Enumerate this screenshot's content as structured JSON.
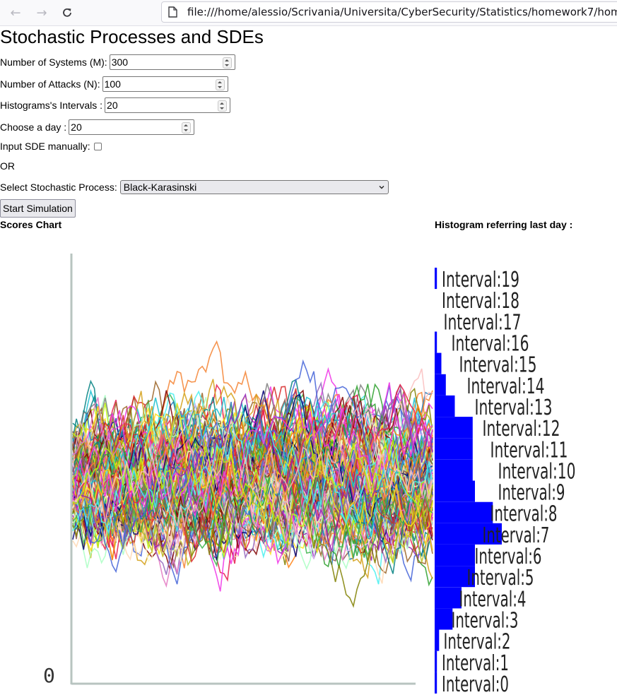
{
  "browser": {
    "url": "file:///home/alessio/Scrivania/Universita/CyberSecurity/Statistics/homework7/homewo"
  },
  "page": {
    "title": "Stochastic Processes and SDEs"
  },
  "form": {
    "systems": {
      "label": "Number of Systems (M):",
      "value": "300"
    },
    "attacks": {
      "label": "Number of Attacks (N):",
      "value": "100"
    },
    "intervals": {
      "label": "Histograms's Intervals :",
      "value": "20"
    },
    "day": {
      "label": "Choose a day :",
      "value": "20"
    },
    "sde_manual": {
      "label": "Input SDE manually:",
      "checked": false
    },
    "or_text": "OR",
    "process": {
      "label": "Select Stochastic Process:",
      "value": "Black-Karasinski"
    },
    "start_button": "Start Simulation"
  },
  "charts": {
    "scores_title": "Scores Chart",
    "histogram_title": "Histogram referring last day :",
    "y_tick_zero": "0"
  },
  "chart_data": [
    {
      "type": "line",
      "title": "Scores Chart",
      "description_series_count": 300,
      "x": {
        "min": 0,
        "max": 100
      },
      "ylim_visible_tick": "0",
      "grid": false,
      "legend": "none"
    },
    {
      "type": "bar",
      "title": "Histogram referring last day :",
      "orientation": "horizontal",
      "categories": [
        "Interval:0",
        "Interval:1",
        "Interval:2",
        "Interval:3",
        "Interval:4",
        "Interval:5",
        "Interval:6",
        "Interval:7",
        "Interval:8",
        "Interval:9",
        "Interval:10",
        "Interval:11",
        "Interval:12",
        "Interval:13",
        "Interval:14",
        "Interval:15",
        "Interval:16",
        "Interval:17",
        "Interval:18",
        "Interval:19"
      ],
      "values": [
        1,
        1,
        2,
        8,
        12,
        18,
        18,
        30,
        26,
        18,
        17,
        17,
        17,
        9,
        5,
        3,
        1,
        0,
        0,
        1
      ],
      "bar_color": "#0000ff"
    }
  ]
}
